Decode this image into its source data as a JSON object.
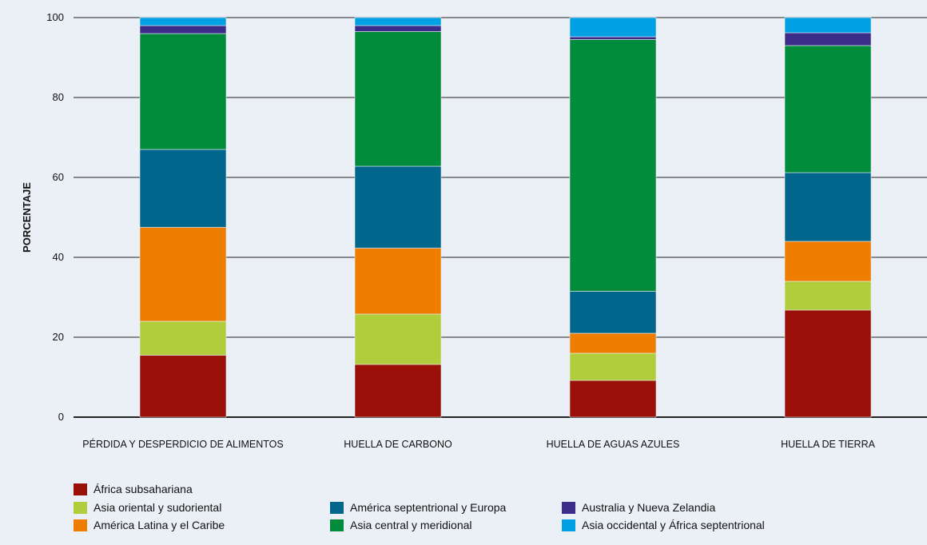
{
  "chart_data": {
    "type": "bar",
    "stacked": true,
    "ylabel": "PORCENTAJE",
    "ylim": [
      0,
      100
    ],
    "yticks": [
      0,
      20,
      40,
      60,
      80,
      100
    ],
    "grid": true,
    "legend_position": "bottom",
    "categories": [
      "PÉRDIDA Y DESPERDICIO DE ALIMENTOS",
      "HUELLA DE CARBONO",
      "HUELLA DE AGUAS AZULES",
      "HUELLA DE TIERRA"
    ],
    "series": [
      {
        "name": "África subsahariana",
        "color": "#9b1008",
        "values": [
          15.5,
          13.2,
          9.2,
          26.8
        ]
      },
      {
        "name": "Asia oriental y sudoriental",
        "color": "#b2cd3b",
        "values": [
          8.5,
          12.6,
          6.8,
          7.2
        ]
      },
      {
        "name": "América Latina y el Caribe",
        "color": "#ef7d00",
        "values": [
          23.5,
          16.5,
          5.0,
          10.0
        ]
      },
      {
        "name": "América septentrional y Europa",
        "color": "#00668b",
        "values": [
          19.5,
          20.5,
          10.5,
          17.2
        ]
      },
      {
        "name": "Asia central y meridional",
        "color": "#008c3a",
        "values": [
          29.0,
          33.7,
          63.0,
          31.8
        ]
      },
      {
        "name": "Australia y Nueva Zelandia",
        "color": "#3b2c8a",
        "values": [
          2.0,
          1.5,
          0.7,
          3.2
        ]
      },
      {
        "name": "Asia occidental y África septentrional",
        "color": "#00a1e4",
        "values": [
          2.0,
          2.0,
          4.8,
          3.8
        ]
      }
    ]
  }
}
